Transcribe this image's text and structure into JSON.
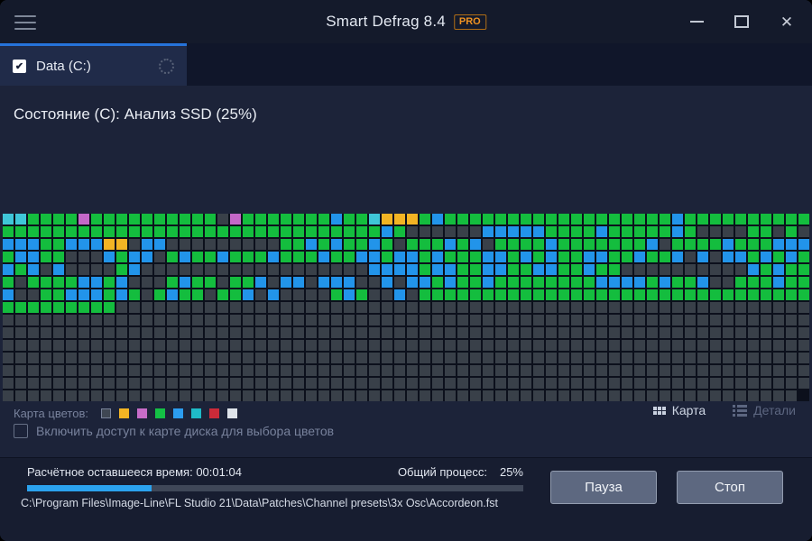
{
  "titlebar": {
    "title": "Smart Defrag 8.4",
    "badge": "PRO"
  },
  "tab": {
    "label": "Data (C:)",
    "check": "✔"
  },
  "status_text": "Состояние (C): Анализ SSD (25%)",
  "disk_map": {
    "columns": 64,
    "rows": 15,
    "cell_colors": {
      "E": "#394049",
      "G": "#14bd3e",
      "B": "#2294ea",
      "C": "#3fc6d8",
      "Y": "#f3b424",
      "M": "#c468c8"
    },
    "grid": [
      "CCGGGGMGGGGGGGGGGEMGGGGGGGBGGCYYYGBGGGGGGGGGGGGGGGGGGBGGGGGGGGG",
      "GGGGGGGGGGGGGGGGGGGGGGGGGGGGGGGBGEEEEEEBBBBBGGGGBGGGGGBGEEEEGGEG",
      "EBBBGGBBBYYEBBEEEEEEEEEGGBGBGGBGEGGGBGBEGGGGBGGGGGGGBEGGGGBGGGBB",
      "BGBBGGEEEBGBBEGBGGBGGGBGGGBGGBBGBBGBGGGBBGBGBGGBBGGBGGBEBEBBGBGB",
      "GBGBEBEEEEGBEEEEEEEEEEEEEEEEEEBBBBGBBGGBBGGBBGGBGGEEEEEEEEEEBGBG",
      "GGEGGGGBBGBEEEGBGGEGGBEBBEBBBEEBEBBGBGGBGGGGGGGGBBBBGBGGBEEGGGBG",
      "GBEEGGBBBGBGEGBGGEGGBEBEEEEGBGEEBEGGGGGGGGGGGGGGGGGGGGGGGGGGGGGG",
      "GGGGGGGGGGEEEEEEEEEEEEEEEEEEEEEEEEEEEEEEEEEEEEEEEEEEEEEEEEEEEEEE",
      "EEEEEEEEEEEEEEEEEEEEEEEEEEEEEEEEEEEEEEEEEEEEEEEEEEEEEEEEEEEEEEEE",
      "EEEEEEEEEEEEEEEEEEEEEEEEEEEEEEEEEEEEEEEEEEEEEEEEEEEEEEEEEEEEEEEE",
      "EEEEEEEEEEEEEEEEEEEEEEEEEEEEEEEEEEEEEEEEEEEEEEEEEEEEEEEEEEEEEEEE",
      "EEEEEEEEEEEEEEEEEEEEEEEEEEEEEEEEEEEEEEEEEEEEEEEEEEEEEEEEEEEEEEEE",
      "EEEEEEEEEEEEEEEEEEEEEEEEEEEEEEEEEEEEEEEEEEEEEEEEEEEEEEEEEEEEEEEE",
      "EEEEEEEEEEEEEEEEEEEEEEEEEEEEEEEEEEEEEEEEEEEEEEEEEEEEEEEEEEEEEEEE",
      "EEEEEEEEEEEEEEEEEEEEEEEEEEEEEEEEEEEEEEEEEEEEEEEEEEEEEEEEEEEEEEEE"
    ]
  },
  "legend": {
    "label": "Карта цветов:",
    "swatches": [
      {
        "color": "#3f4753",
        "border": "#79839a"
      },
      {
        "color": "#f3b424"
      },
      {
        "color": "#c76cc8"
      },
      {
        "color": "#14c045"
      },
      {
        "color": "#2c9df0"
      },
      {
        "color": "#1fbac8"
      },
      {
        "color": "#cb2b39"
      },
      {
        "color": "#dfe4ea"
      }
    ]
  },
  "view_switch": {
    "map": "Карта",
    "details": "Детали"
  },
  "options": {
    "map_access_label": "Включить доступ к карте диска для выбора цветов"
  },
  "footer": {
    "time_label": "Расчётное оставшееся время:",
    "time_value": "00:01:04",
    "overall_label": "Общий процесс:",
    "overall_value": "25%",
    "progress_percent": 25,
    "current_file": "C:\\Program Files\\Image-Line\\FL Studio 21\\Data\\Patches\\Channel presets\\3x Osc\\Accordeon.fst",
    "pause": "Пауза",
    "stop": "Стоп"
  }
}
